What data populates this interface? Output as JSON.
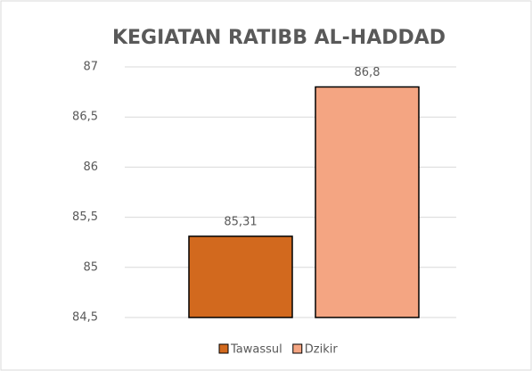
{
  "chart_data": {
    "type": "bar",
    "title": "KEGIATAN RATIBB AL-HADDAD",
    "categories": [
      null
    ],
    "series": [
      {
        "name": "Tawassul",
        "color": "#d2691e",
        "values": [
          85.31
        ],
        "value_labels": [
          "85,31"
        ]
      },
      {
        "name": "Dzikir",
        "color": "#f4a582",
        "values": [
          86.8
        ],
        "value_labels": [
          "86,8"
        ]
      }
    ],
    "ylim": [
      84.5,
      87
    ],
    "yticks": [
      {
        "value": 84.5,
        "label": "84,5"
      },
      85,
      {
        "value": 85.5,
        "label": "85,5"
      },
      86,
      {
        "value": 86.5,
        "label": "86,5"
      },
      87
    ],
    "grid": true,
    "legend": "bottom"
  }
}
